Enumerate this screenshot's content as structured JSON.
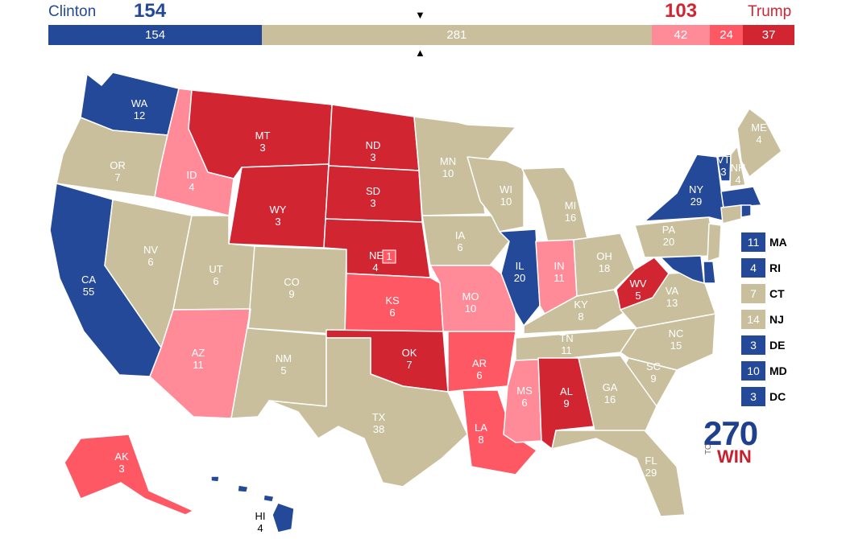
{
  "header": {
    "left_name": "Clinton",
    "left_total": "154",
    "right_name": "Trump",
    "right_total": "103",
    "down_arrow": "▼",
    "up_arrow": "▲"
  },
  "bar": [
    {
      "value": 154,
      "label": "154",
      "color": "#244999"
    },
    {
      "value": 281,
      "label": "281",
      "color": "#c9bf9d"
    },
    {
      "value": 42,
      "label": "42",
      "color": "#ff8b98"
    },
    {
      "value": 24,
      "label": "24",
      "color": "#ff5865"
    },
    {
      "value": 37,
      "label": "37",
      "color": "#d22532"
    }
  ],
  "colors": {
    "dem": "#244999",
    "tossup": "#c9bf9d",
    "lean_rep": "#ff8b98",
    "likely_rep": "#ff5865",
    "safe_rep": "#d22532"
  },
  "states": [
    {
      "abbr": "WA",
      "votes": "12",
      "color": "#244999"
    },
    {
      "abbr": "OR",
      "votes": "7",
      "color": "#c9bf9d"
    },
    {
      "abbr": "CA",
      "votes": "55",
      "color": "#244999"
    },
    {
      "abbr": "ID",
      "votes": "4",
      "color": "#ff8b98"
    },
    {
      "abbr": "NV",
      "votes": "6",
      "color": "#c9bf9d"
    },
    {
      "abbr": "MT",
      "votes": "3",
      "color": "#d22532"
    },
    {
      "abbr": "WY",
      "votes": "3",
      "color": "#d22532"
    },
    {
      "abbr": "UT",
      "votes": "6",
      "color": "#c9bf9d"
    },
    {
      "abbr": "AZ",
      "votes": "11",
      "color": "#ff8b98"
    },
    {
      "abbr": "CO",
      "votes": "9",
      "color": "#c9bf9d"
    },
    {
      "abbr": "NM",
      "votes": "5",
      "color": "#c9bf9d"
    },
    {
      "abbr": "ND",
      "votes": "3",
      "color": "#d22532"
    },
    {
      "abbr": "SD",
      "votes": "3",
      "color": "#d22532"
    },
    {
      "abbr": "NE",
      "votes": "4",
      "color": "#d22532"
    },
    {
      "abbr": "KS",
      "votes": "6",
      "color": "#ff5865"
    },
    {
      "abbr": "OK",
      "votes": "7",
      "color": "#d22532"
    },
    {
      "abbr": "TX",
      "votes": "38",
      "color": "#c9bf9d"
    },
    {
      "abbr": "MN",
      "votes": "10",
      "color": "#c9bf9d"
    },
    {
      "abbr": "IA",
      "votes": "6",
      "color": "#c9bf9d"
    },
    {
      "abbr": "MO",
      "votes": "10",
      "color": "#ff8b98"
    },
    {
      "abbr": "AR",
      "votes": "6",
      "color": "#ff5865"
    },
    {
      "abbr": "LA",
      "votes": "8",
      "color": "#ff5865"
    },
    {
      "abbr": "WI",
      "votes": "10",
      "color": "#c9bf9d"
    },
    {
      "abbr": "IL",
      "votes": "20",
      "color": "#244999"
    },
    {
      "abbr": "MS",
      "votes": "6",
      "color": "#ff8b98"
    },
    {
      "abbr": "MI",
      "votes": "16",
      "color": "#c9bf9d"
    },
    {
      "abbr": "IN",
      "votes": "11",
      "color": "#ff8b98"
    },
    {
      "abbr": "KY",
      "votes": "8",
      "color": "#c9bf9d"
    },
    {
      "abbr": "TN",
      "votes": "11",
      "color": "#c9bf9d"
    },
    {
      "abbr": "AL",
      "votes": "9",
      "color": "#d22532"
    },
    {
      "abbr": "OH",
      "votes": "18",
      "color": "#c9bf9d"
    },
    {
      "abbr": "WV",
      "votes": "5",
      "color": "#d22532"
    },
    {
      "abbr": "VA",
      "votes": "13",
      "color": "#c9bf9d"
    },
    {
      "abbr": "NC",
      "votes": "15",
      "color": "#c9bf9d"
    },
    {
      "abbr": "SC",
      "votes": "9",
      "color": "#c9bf9d"
    },
    {
      "abbr": "GA",
      "votes": "16",
      "color": "#c9bf9d"
    },
    {
      "abbr": "FL",
      "votes": "29",
      "color": "#c9bf9d"
    },
    {
      "abbr": "PA",
      "votes": "20",
      "color": "#c9bf9d"
    },
    {
      "abbr": "NY",
      "votes": "29",
      "color": "#244999"
    },
    {
      "abbr": "VT",
      "votes": "3",
      "color": "#244999"
    },
    {
      "abbr": "NH",
      "votes": "4",
      "color": "#c9bf9d"
    },
    {
      "abbr": "ME",
      "votes": "4",
      "color": "#c9bf9d"
    },
    {
      "abbr": "AK",
      "votes": "3",
      "color": "#ff5865"
    },
    {
      "abbr": "HI",
      "votes": "4",
      "color": "#244999"
    }
  ],
  "ne_district": {
    "votes": "1",
    "color": "#ff5865"
  },
  "small_states": [
    {
      "abbr": "MA",
      "votes": "11",
      "color": "#244999"
    },
    {
      "abbr": "RI",
      "votes": "4",
      "color": "#244999"
    },
    {
      "abbr": "CT",
      "votes": "7",
      "color": "#c9bf9d"
    },
    {
      "abbr": "NJ",
      "votes": "14",
      "color": "#c9bf9d"
    },
    {
      "abbr": "DE",
      "votes": "3",
      "color": "#244999"
    },
    {
      "abbr": "MD",
      "votes": "10",
      "color": "#244999"
    },
    {
      "abbr": "DC",
      "votes": "3",
      "color": "#244999"
    }
  ],
  "logo": {
    "number": "270",
    "to": "TO",
    "win": "WIN"
  }
}
